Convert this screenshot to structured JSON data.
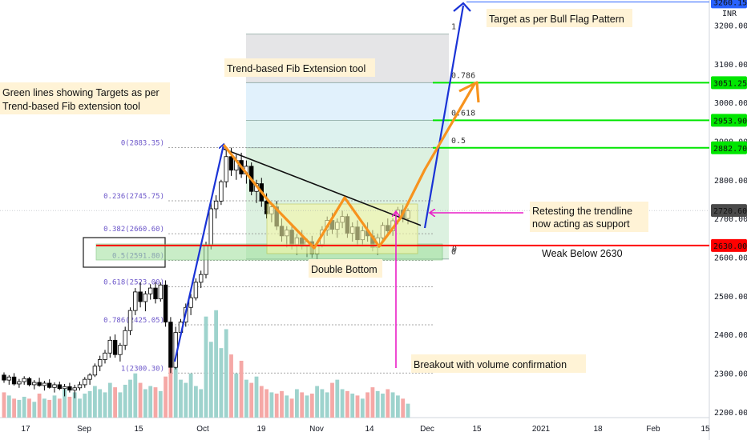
{
  "chart_data": {
    "type": "candlestick",
    "symbol_currency": "INR",
    "y_axis": {
      "min": 2185,
      "max": 3265,
      "ticks": [
        2200,
        2300,
        2400,
        2500,
        2600,
        2700,
        2800,
        2900,
        3000,
        3100,
        3200
      ],
      "tick_labels": [
        "2200.00",
        "2300.00",
        "2400.00",
        "2500.00",
        "2600.00",
        "2700.00",
        "2800.00",
        "2900.00",
        "3000.00",
        "3100.00",
        "3200.00"
      ],
      "price_badges": [
        {
          "value": 3260.15,
          "label": "3260.15",
          "color": "#2962ff",
          "text_color": "#ffffff"
        },
        {
          "value": 3051.25,
          "label": "3051.25",
          "color": "#00e600",
          "text_color": "#111111"
        },
        {
          "value": 2953.9,
          "label": "2953.90",
          "color": "#00e600",
          "text_color": "#111111"
        },
        {
          "value": 2882.7,
          "label": "2882.70",
          "color": "#00e600",
          "text_color": "#111111"
        },
        {
          "value": 2720.6,
          "label": "2720.60",
          "color": "#4a4a4a",
          "text_color": "#ffffff"
        },
        {
          "value": 2630.0,
          "label": "2630.00",
          "color": "#ff0000",
          "text_color": "#ffffff"
        }
      ]
    },
    "x_axis": {
      "labels": [
        "17",
        "Sep",
        "15",
        "Oct",
        "19",
        "Nov",
        "14",
        "Dec",
        "15",
        "2021",
        "18",
        "Feb",
        "15"
      ]
    },
    "fib_retracement": [
      {
        "ratio": "0",
        "price": "2883.35",
        "value": 2883.35
      },
      {
        "ratio": "0.236",
        "price": "2745.75",
        "value": 2745.75
      },
      {
        "ratio": "0.382",
        "price": "2660.60",
        "value": 2660.6
      },
      {
        "ratio": "0.5",
        "price": "2591.80",
        "value": 2591.8
      },
      {
        "ratio": "0.618",
        "price": "2523.00",
        "value": 2523.0
      },
      {
        "ratio": "0.786",
        "price": "2425.05",
        "value": 2425.05
      },
      {
        "ratio": "1",
        "price": "2300.30",
        "value": 2300.3
      }
    ],
    "fib_extension": [
      {
        "ratio": "1",
        "value": 3177
      },
      {
        "ratio": "0.786",
        "value": 3051.25
      },
      {
        "ratio": "0.618",
        "value": 2953.9
      },
      {
        "ratio": "0.5",
        "value": 2882.7
      },
      {
        "ratio": "0",
        "value": 2595
      }
    ],
    "candles": [
      {
        "o": 2295,
        "h": 2302,
        "l": 2275,
        "c": 2282
      },
      {
        "o": 2282,
        "h": 2295,
        "l": 2270,
        "c": 2290
      },
      {
        "o": 2290,
        "h": 2300,
        "l": 2268,
        "c": 2272
      },
      {
        "o": 2272,
        "h": 2285,
        "l": 2262,
        "c": 2278
      },
      {
        "o": 2278,
        "h": 2292,
        "l": 2270,
        "c": 2286
      },
      {
        "o": 2286,
        "h": 2290,
        "l": 2266,
        "c": 2270
      },
      {
        "o": 2270,
        "h": 2282,
        "l": 2258,
        "c": 2276
      },
      {
        "o": 2276,
        "h": 2288,
        "l": 2265,
        "c": 2268
      },
      {
        "o": 2268,
        "h": 2280,
        "l": 2255,
        "c": 2274
      },
      {
        "o": 2274,
        "h": 2284,
        "l": 2260,
        "c": 2263
      },
      {
        "o": 2263,
        "h": 2276,
        "l": 2250,
        "c": 2270
      },
      {
        "o": 2270,
        "h": 2278,
        "l": 2256,
        "c": 2260
      },
      {
        "o": 2260,
        "h": 2272,
        "l": 2240,
        "c": 2265
      },
      {
        "o": 2265,
        "h": 2275,
        "l": 2250,
        "c": 2256
      },
      {
        "o": 2256,
        "h": 2270,
        "l": 2235,
        "c": 2262
      },
      {
        "o": 2262,
        "h": 2278,
        "l": 2255,
        "c": 2270
      },
      {
        "o": 2270,
        "h": 2290,
        "l": 2262,
        "c": 2284
      },
      {
        "o": 2284,
        "h": 2300,
        "l": 2270,
        "c": 2295
      },
      {
        "o": 2295,
        "h": 2325,
        "l": 2290,
        "c": 2318
      },
      {
        "o": 2318,
        "h": 2345,
        "l": 2305,
        "c": 2335
      },
      {
        "o": 2335,
        "h": 2360,
        "l": 2325,
        "c": 2352
      },
      {
        "o": 2352,
        "h": 2395,
        "l": 2340,
        "c": 2385
      },
      {
        "o": 2385,
        "h": 2400,
        "l": 2340,
        "c": 2348
      },
      {
        "o": 2348,
        "h": 2378,
        "l": 2330,
        "c": 2372
      },
      {
        "o": 2372,
        "h": 2420,
        "l": 2360,
        "c": 2410
      },
      {
        "o": 2410,
        "h": 2470,
        "l": 2398,
        "c": 2462
      },
      {
        "o": 2462,
        "h": 2520,
        "l": 2450,
        "c": 2510
      },
      {
        "o": 2510,
        "h": 2535,
        "l": 2470,
        "c": 2485
      },
      {
        "o": 2485,
        "h": 2512,
        "l": 2460,
        "c": 2505
      },
      {
        "o": 2505,
        "h": 2530,
        "l": 2490,
        "c": 2520
      },
      {
        "o": 2520,
        "h": 2535,
        "l": 2480,
        "c": 2492
      },
      {
        "o": 2492,
        "h": 2535,
        "l": 2485,
        "c": 2528
      },
      {
        "o": 2528,
        "h": 2540,
        "l": 2420,
        "c": 2432
      },
      {
        "o": 2432,
        "h": 2445,
        "l": 2300,
        "c": 2315
      },
      {
        "o": 2315,
        "h": 2420,
        "l": 2310,
        "c": 2405
      },
      {
        "o": 2405,
        "h": 2440,
        "l": 2395,
        "c": 2432
      },
      {
        "o": 2432,
        "h": 2480,
        "l": 2420,
        "c": 2470
      },
      {
        "o": 2470,
        "h": 2505,
        "l": 2450,
        "c": 2495
      },
      {
        "o": 2495,
        "h": 2545,
        "l": 2488,
        "c": 2535
      },
      {
        "o": 2535,
        "h": 2565,
        "l": 2520,
        "c": 2555
      },
      {
        "o": 2555,
        "h": 2640,
        "l": 2545,
        "c": 2630
      },
      {
        "o": 2630,
        "h": 2740,
        "l": 2620,
        "c": 2725
      },
      {
        "o": 2725,
        "h": 2760,
        "l": 2700,
        "c": 2745
      },
      {
        "o": 2745,
        "h": 2800,
        "l": 2735,
        "c": 2795
      },
      {
        "o": 2795,
        "h": 2880,
        "l": 2780,
        "c": 2860
      },
      {
        "o": 2860,
        "h": 2883,
        "l": 2810,
        "c": 2825
      },
      {
        "o": 2825,
        "h": 2865,
        "l": 2800,
        "c": 2850
      },
      {
        "o": 2850,
        "h": 2870,
        "l": 2805,
        "c": 2815
      },
      {
        "o": 2815,
        "h": 2850,
        "l": 2790,
        "c": 2835
      },
      {
        "o": 2835,
        "h": 2845,
        "l": 2760,
        "c": 2770
      },
      {
        "o": 2770,
        "h": 2800,
        "l": 2740,
        "c": 2790
      },
      {
        "o": 2790,
        "h": 2805,
        "l": 2730,
        "c": 2745
      },
      {
        "o": 2745,
        "h": 2765,
        "l": 2700,
        "c": 2712
      },
      {
        "o": 2712,
        "h": 2740,
        "l": 2690,
        "c": 2730
      },
      {
        "o": 2730,
        "h": 2745,
        "l": 2670,
        "c": 2680
      },
      {
        "o": 2680,
        "h": 2700,
        "l": 2640,
        "c": 2655
      },
      {
        "o": 2655,
        "h": 2680,
        "l": 2625,
        "c": 2670
      },
      {
        "o": 2670,
        "h": 2685,
        "l": 2620,
        "c": 2632
      },
      {
        "o": 2632,
        "h": 2660,
        "l": 2605,
        "c": 2650
      },
      {
        "o": 2650,
        "h": 2670,
        "l": 2620,
        "c": 2628
      },
      {
        "o": 2628,
        "h": 2648,
        "l": 2600,
        "c": 2640
      },
      {
        "o": 2640,
        "h": 2655,
        "l": 2598,
        "c": 2608
      },
      {
        "o": 2608,
        "h": 2640,
        "l": 2595,
        "c": 2632
      },
      {
        "o": 2632,
        "h": 2680,
        "l": 2625,
        "c": 2670
      },
      {
        "o": 2670,
        "h": 2705,
        "l": 2655,
        "c": 2695
      },
      {
        "o": 2695,
        "h": 2715,
        "l": 2660,
        "c": 2672
      },
      {
        "o": 2672,
        "h": 2700,
        "l": 2650,
        "c": 2690
      },
      {
        "o": 2690,
        "h": 2720,
        "l": 2675,
        "c": 2705
      },
      {
        "o": 2705,
        "h": 2712,
        "l": 2650,
        "c": 2662
      },
      {
        "o": 2662,
        "h": 2690,
        "l": 2640,
        "c": 2678
      },
      {
        "o": 2678,
        "h": 2695,
        "l": 2630,
        "c": 2645
      },
      {
        "o": 2645,
        "h": 2680,
        "l": 2630,
        "c": 2668
      },
      {
        "o": 2668,
        "h": 2690,
        "l": 2640,
        "c": 2655
      },
      {
        "o": 2655,
        "h": 2670,
        "l": 2615,
        "c": 2625
      },
      {
        "o": 2625,
        "h": 2660,
        "l": 2605,
        "c": 2650
      },
      {
        "o": 2650,
        "h": 2690,
        "l": 2640,
        "c": 2682
      },
      {
        "o": 2682,
        "h": 2700,
        "l": 2660,
        "c": 2668
      },
      {
        "o": 2668,
        "h": 2700,
        "l": 2655,
        "c": 2694
      },
      {
        "o": 2694,
        "h": 2730,
        "l": 2685,
        "c": 2722
      },
      {
        "o": 2722,
        "h": 2735,
        "l": 2690,
        "c": 2700
      },
      {
        "o": 2700,
        "h": 2726,
        "l": 2685,
        "c": 2720
      }
    ],
    "volumes": [
      40,
      35,
      30,
      28,
      33,
      30,
      25,
      38,
      30,
      28,
      35,
      30,
      45,
      33,
      40,
      30,
      38,
      42,
      50,
      45,
      40,
      55,
      48,
      40,
      52,
      60,
      70,
      55,
      45,
      50,
      48,
      42,
      65,
      80,
      95,
      60,
      55,
      70,
      50,
      45,
      160,
      120,
      170,
      110,
      140,
      100,
      70,
      90,
      60,
      55,
      65,
      50,
      45,
      40,
      38,
      42,
      35,
      30,
      45,
      40,
      35,
      38,
      50,
      45,
      40,
      55,
      60,
      45,
      42,
      38,
      35,
      30,
      40,
      48,
      42,
      38,
      45,
      40,
      35,
      30,
      22
    ],
    "volume_max": 190
  },
  "annotations": {
    "green_targets_note": [
      "Green lines showing Targets as per",
      "Trend-based Fib extension tool"
    ],
    "fib_tool_title": "Trend-based Fib Extension tool",
    "bull_flag_target": "Target as per Bull Flag Pattern",
    "retest_note": [
      "Retesting the trendline",
      "now acting as support"
    ],
    "weak_below": "Weak Below 2630",
    "double_bottom": "Double Bottom",
    "breakout_note": "Breakout with volume confirmation"
  },
  "colors": {
    "up": "#26a69a",
    "down": "#ef5350",
    "candle_body_up": "#ffffff",
    "candle_body_down": "#000000",
    "target_line": "#00e600",
    "support_line": "#ff0000",
    "arrow_blue": "#1a33d6",
    "arrow_orange": "#f7931e",
    "arrow_magenta": "#e91ec7",
    "note_bg": "#fff3d6",
    "box_green": "#c8eccb",
    "box_yellow": "#f5f7a8"
  }
}
